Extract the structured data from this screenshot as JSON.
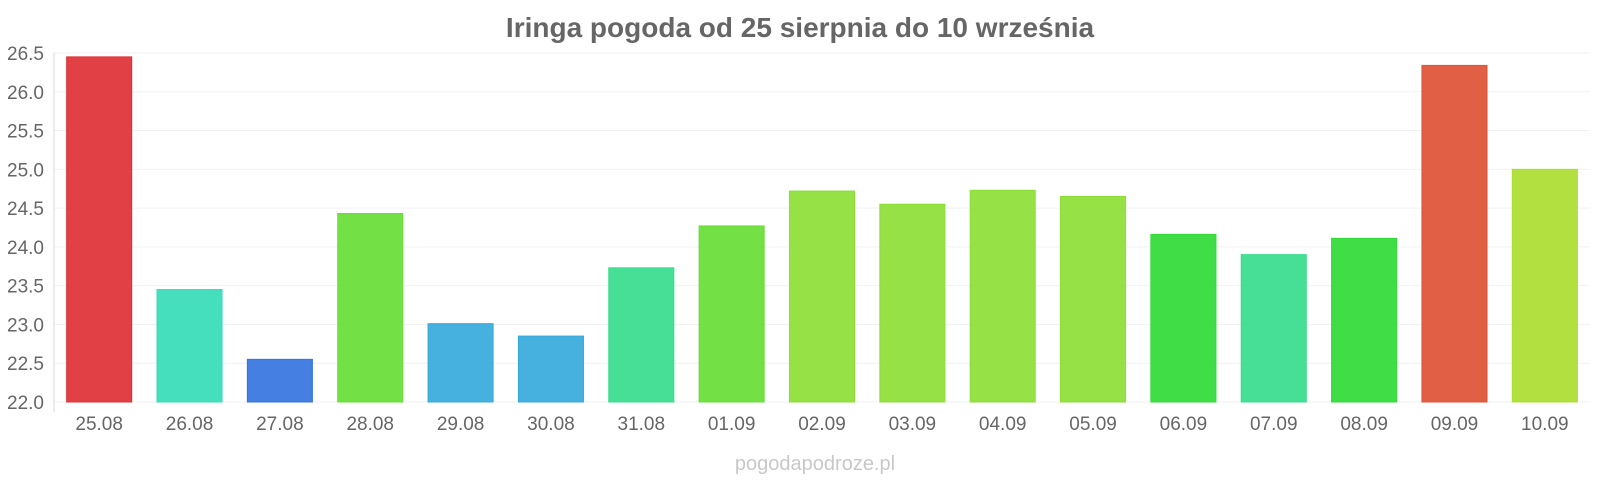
{
  "chart_data": {
    "type": "bar",
    "title": "Iringa pogoda od 25 sierpnia do 10 września",
    "xlabel": "",
    "ylabel": "",
    "categories": [
      "25.08",
      "26.08",
      "27.08",
      "28.08",
      "29.08",
      "30.08",
      "31.08",
      "01.09",
      "02.09",
      "03.09",
      "04.09",
      "05.09",
      "06.09",
      "07.09",
      "08.09",
      "09.09",
      "10.09"
    ],
    "values": [
      26.45,
      23.45,
      22.55,
      24.43,
      23.01,
      22.85,
      23.73,
      24.27,
      24.72,
      24.55,
      24.73,
      24.65,
      24.16,
      23.9,
      24.11,
      26.34,
      25.0
    ],
    "colors": [
      "#de3135",
      "#36dcb9",
      "#3474de",
      "#67dd36",
      "#36a9dc",
      "#36a9dc",
      "#36dc8c",
      "#67dd36",
      "#8cde36",
      "#8cde36",
      "#8cde36",
      "#8cde36",
      "#31da37",
      "#36dc8c",
      "#31da37",
      "#de5135",
      "#abdd31"
    ],
    "ylim": [
      22.0,
      26.5
    ],
    "yticks": [
      "22.0",
      "22.5",
      "23.0",
      "23.5",
      "24.0",
      "24.5",
      "25.0",
      "25.5",
      "26.0",
      "26.5"
    ],
    "grid": true,
    "legend": "none"
  },
  "watermark": "pogodapodroze.pl"
}
